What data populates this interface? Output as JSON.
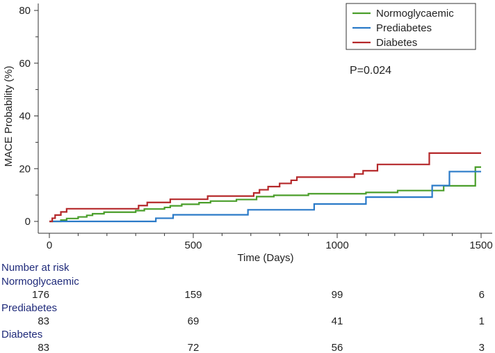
{
  "chart_data": {
    "type": "line",
    "subtype": "kaplan-meier-step",
    "xlabel": "Time (Days)",
    "ylabel": "MACE Probability (%)",
    "xlim": [
      0,
      1500
    ],
    "ylim": [
      0,
      80
    ],
    "xticks": [
      0,
      500,
      1000,
      1500
    ],
    "yticks": [
      0,
      20,
      40,
      60,
      80
    ],
    "annotation": "P=0.024",
    "legend_position": "top-right",
    "series": [
      {
        "name": "Normoglycaemic",
        "color": "#4a9e2a",
        "points": [
          [
            0,
            0
          ],
          [
            40,
            0.5
          ],
          [
            60,
            1.1
          ],
          [
            100,
            1.7
          ],
          [
            130,
            2.3
          ],
          [
            150,
            2.9
          ],
          [
            190,
            3.5
          ],
          [
            300,
            4.1
          ],
          [
            330,
            4.7
          ],
          [
            400,
            5.3
          ],
          [
            420,
            5.9
          ],
          [
            460,
            6.5
          ],
          [
            520,
            7.1
          ],
          [
            560,
            7.7
          ],
          [
            650,
            8.3
          ],
          [
            720,
            9.4
          ],
          [
            780,
            9.9
          ],
          [
            900,
            10.5
          ],
          [
            1100,
            11.0
          ],
          [
            1210,
            11.7
          ],
          [
            1370,
            13.5
          ],
          [
            1480,
            20.6
          ],
          [
            1500,
            20.6
          ]
        ]
      },
      {
        "name": "Prediabetes",
        "color": "#2a7ac8",
        "points": [
          [
            0,
            0
          ],
          [
            370,
            1.2
          ],
          [
            430,
            2.5
          ],
          [
            690,
            4.4
          ],
          [
            920,
            6.6
          ],
          [
            1100,
            9.2
          ],
          [
            1330,
            13.6
          ],
          [
            1390,
            18.9
          ],
          [
            1500,
            18.9
          ]
        ]
      },
      {
        "name": "Diabetes",
        "color": "#b5282a",
        "points": [
          [
            0,
            0
          ],
          [
            10,
            1.2
          ],
          [
            20,
            2.4
          ],
          [
            40,
            3.6
          ],
          [
            60,
            4.8
          ],
          [
            310,
            6.0
          ],
          [
            340,
            7.2
          ],
          [
            420,
            8.4
          ],
          [
            550,
            9.6
          ],
          [
            710,
            10.8
          ],
          [
            730,
            12.0
          ],
          [
            760,
            13.2
          ],
          [
            800,
            14.4
          ],
          [
            840,
            15.6
          ],
          [
            860,
            16.8
          ],
          [
            1060,
            18.0
          ],
          [
            1090,
            19.2
          ],
          [
            1140,
            21.6
          ],
          [
            1320,
            25.9
          ],
          [
            1500,
            25.9
          ]
        ]
      }
    ]
  },
  "risk_table": {
    "title": "Number at risk",
    "time_points": [
      0,
      500,
      1000,
      1500
    ],
    "groups": [
      {
        "name": "Normoglycaemic",
        "counts": [
          "176",
          "159",
          "99",
          "6"
        ]
      },
      {
        "name": "Prediabetes",
        "counts": [
          "83",
          "69",
          "41",
          "1"
        ]
      },
      {
        "name": "Diabetes",
        "counts": [
          "83",
          "72",
          "56",
          "3"
        ]
      }
    ]
  }
}
